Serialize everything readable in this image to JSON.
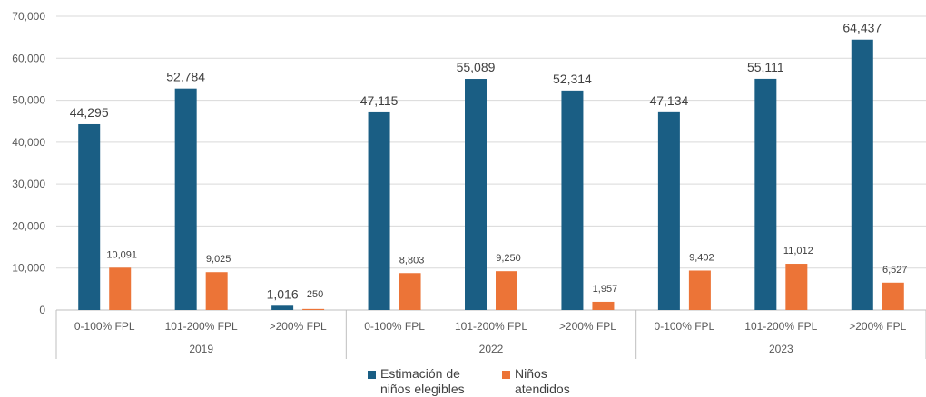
{
  "chart_data": {
    "type": "bar",
    "title": "",
    "xlabel": "",
    "ylabel": "",
    "ylim": [
      0,
      70000
    ],
    "y_ticks": [
      "0",
      "10,000",
      "20,000",
      "30,000",
      "40,000",
      "50,000",
      "60,000",
      "70,000"
    ],
    "grid": true,
    "legend_position": "bottom",
    "groups": [
      {
        "label": "2019",
        "categories": [
          "0-100% FPL",
          "101-200% FPL",
          ">200% FPL"
        ]
      },
      {
        "label": "2022",
        "categories": [
          "0-100% FPL",
          "101-200% FPL",
          ">200% FPL"
        ]
      },
      {
        "label": "2023",
        "categories": [
          "0-100% FPL",
          "101-200% FPL",
          ">200% FPL"
        ]
      }
    ],
    "series": [
      {
        "name": "Estimación de niños elegibles",
        "color": "#1a5e84",
        "values": [
          44295,
          52784,
          1016,
          47115,
          55089,
          52314,
          47134,
          55111,
          64437
        ],
        "labels": [
          "44,295",
          "52,784",
          "1,016",
          "47,115",
          "55,089",
          "52,314",
          "47,134",
          "55,111",
          "64,437"
        ]
      },
      {
        "name": "Niños atendidos",
        "color": "#ec7437",
        "values": [
          10091,
          9025,
          250,
          8803,
          9250,
          1957,
          9402,
          11012,
          6527
        ],
        "labels": [
          "10,091",
          "9,025",
          "250",
          "8,803",
          "9,250",
          "1,957",
          "9,402",
          "11,012",
          "6,527"
        ]
      }
    ]
  },
  "legend": {
    "items": [
      {
        "label": "Estimación de niños elegibles",
        "color": "#1a5e84"
      },
      {
        "label": "Niños atendidos",
        "color": "#ec7437"
      }
    ]
  }
}
